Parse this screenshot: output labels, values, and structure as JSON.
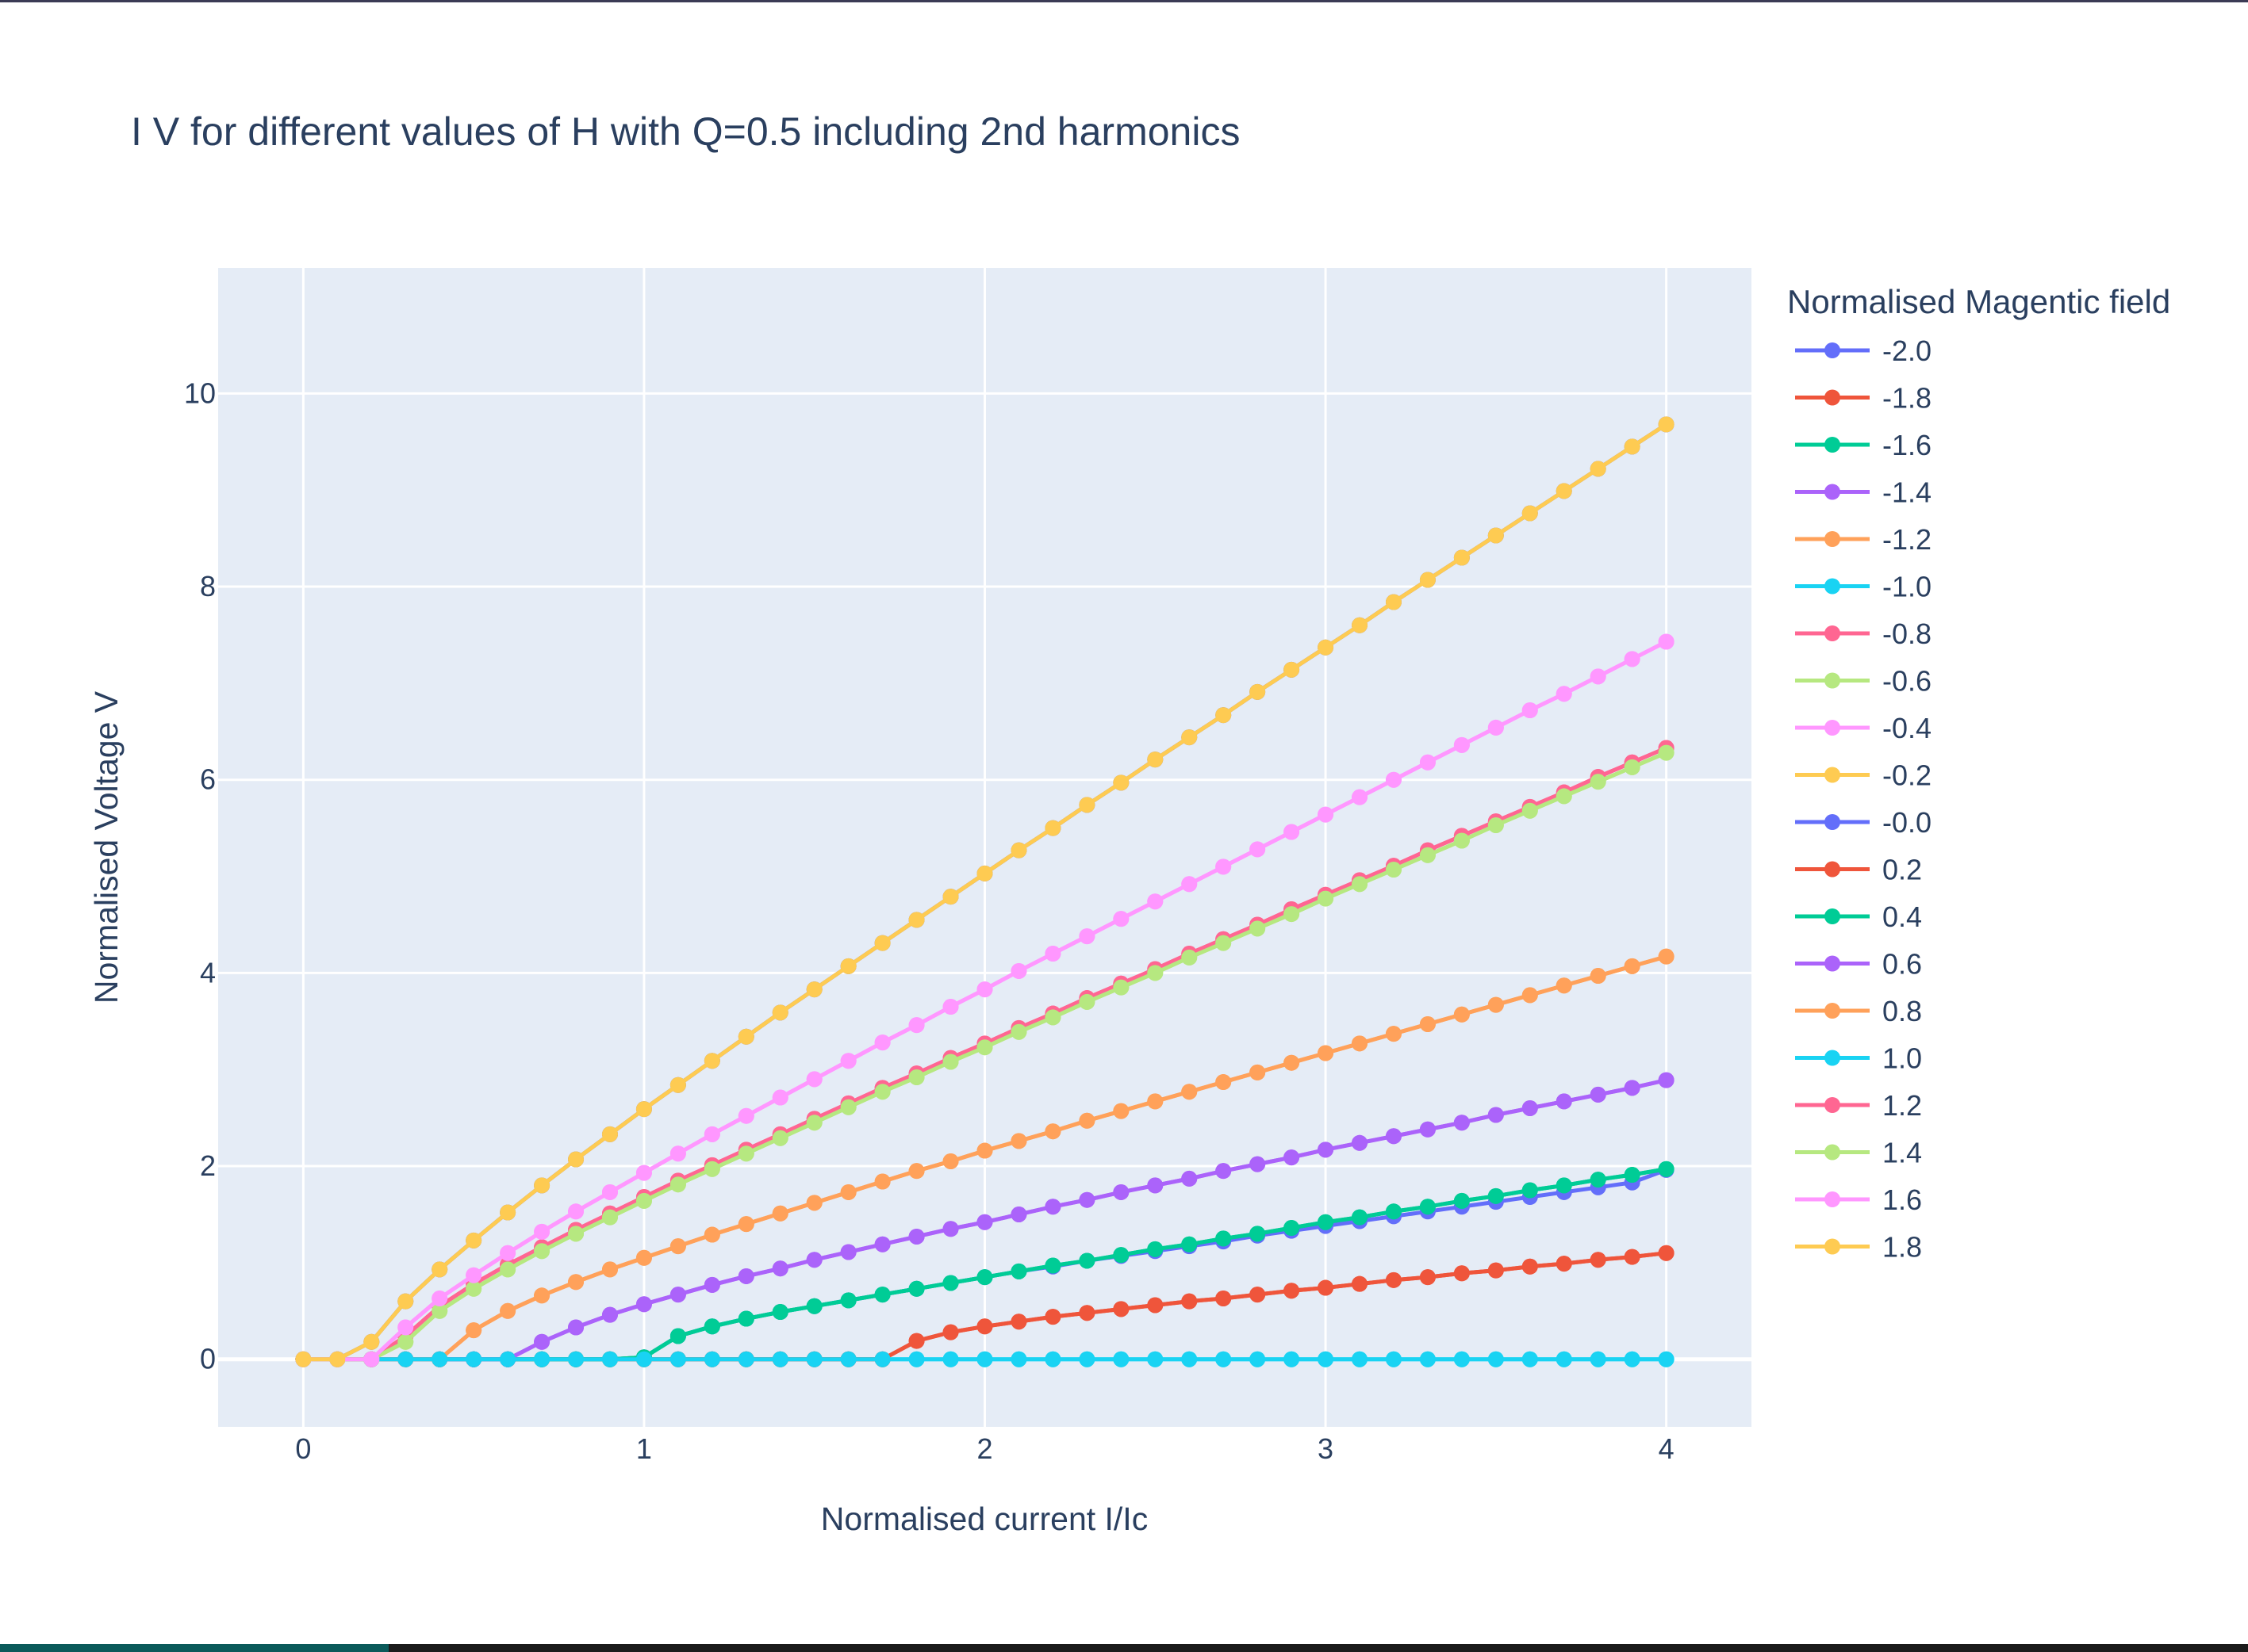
{
  "chart_data": {
    "type": "line",
    "title": "I V for different values of H with Q=0.5 including 2nd harmonics",
    "xlabel": "Normalised current I/Ic",
    "ylabel": "Normalised Voltage V",
    "xlim": [
      -0.25,
      4.25
    ],
    "ylim": [
      -0.7,
      11.3
    ],
    "xticks": [
      0,
      1,
      2,
      3,
      4
    ],
    "yticks": [
      0,
      2,
      4,
      6,
      8,
      10
    ],
    "grid": true,
    "legend_title": "Normalised Magentic field",
    "legend_position": "right",
    "x": [
      0,
      0.1,
      0.2,
      0.3,
      0.4,
      0.5,
      0.6,
      0.7,
      0.8,
      0.9,
      1.0,
      1.1,
      1.2,
      1.3,
      1.4,
      1.5,
      1.6,
      1.7,
      1.8,
      1.9,
      2.0,
      2.1,
      2.2,
      2.3,
      2.4,
      2.5,
      2.6,
      2.7,
      2.8,
      2.9,
      3.0,
      3.1,
      3.2,
      3.3,
      3.4,
      3.5,
      3.6,
      3.7,
      3.8,
      3.9,
      4.0
    ],
    "series": [
      {
        "name": "-2.0",
        "color": "#636efa",
        "values": [
          0,
          0,
          0,
          0,
          0,
          0,
          0,
          0,
          0,
          0,
          0.02,
          0.24,
          0.34,
          0.42,
          0.49,
          0.55,
          0.61,
          0.67,
          0.73,
          0.79,
          0.85,
          0.91,
          0.96,
          1.02,
          1.07,
          1.12,
          1.17,
          1.22,
          1.28,
          1.33,
          1.38,
          1.43,
          1.48,
          1.53,
          1.58,
          1.63,
          1.68,
          1.73,
          1.78,
          1.83,
          1.96
        ]
      },
      {
        "name": "-1.8",
        "color": "#EF553B",
        "values": [
          0,
          0,
          0,
          0,
          0,
          0,
          0,
          0,
          0,
          0,
          0,
          0,
          0,
          0,
          0,
          0,
          0,
          0,
          0.19,
          0.28,
          0.34,
          0.39,
          0.44,
          0.48,
          0.52,
          0.56,
          0.6,
          0.63,
          0.67,
          0.71,
          0.74,
          0.78,
          0.82,
          0.85,
          0.89,
          0.92,
          0.96,
          0.99,
          1.03,
          1.06,
          1.1
        ]
      },
      {
        "name": "-1.6",
        "color": "#00cc96",
        "values": [
          0,
          0,
          0,
          0,
          0,
          0,
          0,
          0,
          0,
          0,
          0.02,
          0.24,
          0.34,
          0.42,
          0.49,
          0.55,
          0.61,
          0.67,
          0.73,
          0.79,
          0.85,
          0.91,
          0.97,
          1.02,
          1.08,
          1.14,
          1.19,
          1.25,
          1.3,
          1.36,
          1.42,
          1.47,
          1.53,
          1.58,
          1.64,
          1.69,
          1.75,
          1.8,
          1.86,
          1.91,
          1.97
        ]
      },
      {
        "name": "-1.4",
        "color": "#ab63fa",
        "values": [
          0,
          0,
          0,
          0,
          0,
          0,
          0,
          0.18,
          0.33,
          0.46,
          0.57,
          0.67,
          0.77,
          0.86,
          0.94,
          1.03,
          1.11,
          1.19,
          1.27,
          1.35,
          1.42,
          1.5,
          1.58,
          1.65,
          1.73,
          1.8,
          1.87,
          1.95,
          2.02,
          2.09,
          2.17,
          2.24,
          2.31,
          2.38,
          2.45,
          2.53,
          2.6,
          2.67,
          2.74,
          2.81,
          2.89
        ]
      },
      {
        "name": "-1.2",
        "color": "#FFA15A",
        "values": [
          0,
          0,
          0,
          0,
          0,
          0.3,
          0.5,
          0.66,
          0.8,
          0.93,
          1.05,
          1.17,
          1.29,
          1.4,
          1.51,
          1.62,
          1.73,
          1.84,
          1.95,
          2.05,
          2.16,
          2.26,
          2.36,
          2.47,
          2.57,
          2.67,
          2.77,
          2.87,
          2.97,
          3.07,
          3.17,
          3.27,
          3.37,
          3.47,
          3.57,
          3.67,
          3.77,
          3.87,
          3.97,
          4.07,
          4.17
        ]
      },
      {
        "name": "-1.0",
        "color": "#19d3f3",
        "values": [
          0,
          0,
          0,
          0,
          0,
          0,
          0,
          0,
          0,
          0,
          0,
          0,
          0,
          0,
          0,
          0,
          0,
          0,
          0,
          0,
          0,
          0,
          0,
          0,
          0,
          0,
          0,
          0,
          0,
          0,
          0,
          0,
          0,
          0,
          0,
          0,
          0,
          0,
          0,
          0,
          0
        ]
      },
      {
        "name": "-0.8",
        "color": "#FF6692",
        "values": [
          0,
          0,
          0,
          0.24,
          0.55,
          0.78,
          0.98,
          1.16,
          1.34,
          1.51,
          1.68,
          1.85,
          2.01,
          2.17,
          2.33,
          2.49,
          2.65,
          2.81,
          2.96,
          3.12,
          3.27,
          3.43,
          3.58,
          3.74,
          3.89,
          4.04,
          4.2,
          4.35,
          4.5,
          4.66,
          4.81,
          4.96,
          5.11,
          5.27,
          5.42,
          5.57,
          5.72,
          5.87,
          6.03,
          6.18,
          6.33
        ]
      },
      {
        "name": "-0.6",
        "color": "#B6E880",
        "values": [
          0,
          0,
          0,
          0.18,
          0.5,
          0.73,
          0.93,
          1.12,
          1.3,
          1.47,
          1.64,
          1.81,
          1.97,
          2.13,
          2.29,
          2.45,
          2.61,
          2.77,
          2.92,
          3.08,
          3.23,
          3.39,
          3.54,
          3.7,
          3.85,
          4.0,
          4.16,
          4.31,
          4.46,
          4.61,
          4.77,
          4.92,
          5.07,
          5.22,
          5.37,
          5.53,
          5.68,
          5.83,
          5.98,
          6.13,
          6.28
        ]
      },
      {
        "name": "-0.4",
        "color": "#FF97FF",
        "values": [
          0,
          0,
          0,
          0.33,
          0.63,
          0.87,
          1.1,
          1.32,
          1.53,
          1.73,
          1.93,
          2.13,
          2.33,
          2.52,
          2.71,
          2.9,
          3.09,
          3.28,
          3.46,
          3.65,
          3.83,
          4.02,
          4.2,
          4.38,
          4.56,
          4.74,
          4.92,
          5.1,
          5.28,
          5.46,
          5.64,
          5.82,
          6.0,
          6.18,
          6.36,
          6.54,
          6.72,
          6.89,
          7.07,
          7.25,
          7.43
        ]
      },
      {
        "name": "-0.2",
        "color": "#FECB52",
        "values": [
          0,
          0,
          0.18,
          0.6,
          0.93,
          1.23,
          1.52,
          1.8,
          2.07,
          2.33,
          2.59,
          2.84,
          3.09,
          3.34,
          3.59,
          3.83,
          4.07,
          4.31,
          4.55,
          4.79,
          5.03,
          5.27,
          5.5,
          5.74,
          5.97,
          6.21,
          6.44,
          6.67,
          6.91,
          7.14,
          7.37,
          7.6,
          7.84,
          8.07,
          8.3,
          8.53,
          8.76,
          8.99,
          9.22,
          9.45,
          9.68
        ]
      },
      {
        "name": "-0.0",
        "color": "#636efa",
        "values": [
          0,
          0,
          0.18,
          0.6,
          0.93,
          1.23,
          1.52,
          1.8,
          2.07,
          2.33,
          2.59,
          2.84,
          3.09,
          3.34,
          3.59,
          3.83,
          4.07,
          4.31,
          4.55,
          4.79,
          5.03,
          5.27,
          5.5,
          5.74,
          5.97,
          6.21,
          6.44,
          6.67,
          6.91,
          7.14,
          7.37,
          7.6,
          7.84,
          8.07,
          8.3,
          8.53,
          8.76,
          8.99,
          9.22,
          9.45,
          9.68
        ]
      },
      {
        "name": "0.2",
        "color": "#EF553B",
        "values": [
          0,
          0,
          0,
          0,
          0,
          0,
          0,
          0,
          0,
          0,
          0,
          0,
          0,
          0,
          0,
          0,
          0,
          0,
          0.19,
          0.28,
          0.34,
          0.39,
          0.44,
          0.48,
          0.52,
          0.56,
          0.6,
          0.63,
          0.67,
          0.71,
          0.74,
          0.78,
          0.82,
          0.85,
          0.89,
          0.92,
          0.96,
          0.99,
          1.03,
          1.06,
          1.1
        ]
      },
      {
        "name": "0.4",
        "color": "#00cc96",
        "values": [
          0,
          0,
          0,
          0,
          0,
          0,
          0,
          0,
          0,
          0,
          0.02,
          0.24,
          0.34,
          0.42,
          0.49,
          0.55,
          0.61,
          0.67,
          0.73,
          0.79,
          0.85,
          0.91,
          0.97,
          1.02,
          1.08,
          1.14,
          1.19,
          1.25,
          1.3,
          1.36,
          1.42,
          1.47,
          1.53,
          1.58,
          1.64,
          1.69,
          1.75,
          1.8,
          1.86,
          1.91,
          1.97
        ]
      },
      {
        "name": "0.6",
        "color": "#ab63fa",
        "values": [
          0,
          0,
          0,
          0,
          0,
          0,
          0,
          0.18,
          0.33,
          0.46,
          0.57,
          0.67,
          0.77,
          0.86,
          0.94,
          1.03,
          1.11,
          1.19,
          1.27,
          1.35,
          1.42,
          1.5,
          1.58,
          1.65,
          1.73,
          1.8,
          1.87,
          1.95,
          2.02,
          2.09,
          2.17,
          2.24,
          2.31,
          2.38,
          2.45,
          2.53,
          2.6,
          2.67,
          2.74,
          2.81,
          2.89
        ]
      },
      {
        "name": "0.8",
        "color": "#FFA15A",
        "values": [
          0,
          0,
          0,
          0,
          0,
          0.3,
          0.5,
          0.66,
          0.8,
          0.93,
          1.05,
          1.17,
          1.29,
          1.4,
          1.51,
          1.62,
          1.73,
          1.84,
          1.95,
          2.05,
          2.16,
          2.26,
          2.36,
          2.47,
          2.57,
          2.67,
          2.77,
          2.87,
          2.97,
          3.07,
          3.17,
          3.27,
          3.37,
          3.47,
          3.57,
          3.67,
          3.77,
          3.87,
          3.97,
          4.07,
          4.17
        ]
      },
      {
        "name": "1.0",
        "color": "#19d3f3",
        "values": [
          0,
          0,
          0,
          0,
          0,
          0,
          0,
          0,
          0,
          0,
          0,
          0,
          0,
          0,
          0,
          0,
          0,
          0,
          0,
          0,
          0,
          0,
          0,
          0,
          0,
          0,
          0,
          0,
          0,
          0,
          0,
          0,
          0,
          0,
          0,
          0,
          0,
          0,
          0,
          0,
          0
        ]
      },
      {
        "name": "1.2",
        "color": "#FF6692",
        "values": [
          0,
          0,
          0,
          0.24,
          0.55,
          0.78,
          0.98,
          1.16,
          1.34,
          1.51,
          1.68,
          1.85,
          2.01,
          2.17,
          2.33,
          2.49,
          2.65,
          2.81,
          2.96,
          3.12,
          3.27,
          3.43,
          3.58,
          3.74,
          3.89,
          4.04,
          4.2,
          4.35,
          4.5,
          4.66,
          4.81,
          4.96,
          5.11,
          5.27,
          5.42,
          5.57,
          5.72,
          5.87,
          6.03,
          6.18,
          6.33
        ]
      },
      {
        "name": "1.4",
        "color": "#B6E880",
        "values": [
          0,
          0,
          0,
          0.18,
          0.5,
          0.73,
          0.93,
          1.12,
          1.3,
          1.47,
          1.64,
          1.81,
          1.97,
          2.13,
          2.29,
          2.45,
          2.61,
          2.77,
          2.92,
          3.08,
          3.23,
          3.39,
          3.54,
          3.7,
          3.85,
          4.0,
          4.16,
          4.31,
          4.46,
          4.61,
          4.77,
          4.92,
          5.07,
          5.22,
          5.37,
          5.53,
          5.68,
          5.83,
          5.98,
          6.13,
          6.28
        ]
      },
      {
        "name": "1.6",
        "color": "#FF97FF",
        "values": [
          0,
          0,
          0,
          0.33,
          0.63,
          0.87,
          1.1,
          1.32,
          1.53,
          1.73,
          1.93,
          2.13,
          2.33,
          2.52,
          2.71,
          2.9,
          3.09,
          3.28,
          3.46,
          3.65,
          3.83,
          4.02,
          4.2,
          4.38,
          4.56,
          4.74,
          4.92,
          5.1,
          5.28,
          5.46,
          5.64,
          5.82,
          6.0,
          6.18,
          6.36,
          6.54,
          6.72,
          6.89,
          7.07,
          7.25,
          7.43
        ]
      },
      {
        "name": "1.8",
        "color": "#FECB52",
        "values": [
          0,
          0,
          0.18,
          0.6,
          0.93,
          1.23,
          1.52,
          1.8,
          2.07,
          2.33,
          2.59,
          2.84,
          3.09,
          3.34,
          3.59,
          3.83,
          4.07,
          4.31,
          4.55,
          4.79,
          5.03,
          5.27,
          5.5,
          5.74,
          5.97,
          6.21,
          6.44,
          6.67,
          6.91,
          7.14,
          7.37,
          7.6,
          7.84,
          8.07,
          8.3,
          8.53,
          8.76,
          8.99,
          9.22,
          9.45,
          9.68
        ]
      }
    ]
  }
}
